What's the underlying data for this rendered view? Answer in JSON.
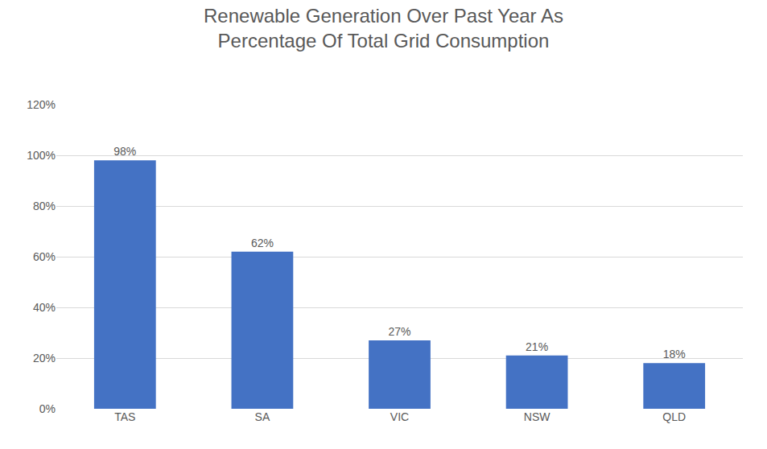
{
  "chart_data": {
    "type": "bar",
    "title": "Renewable Generation Over Past Year As\nPercentage Of Total Grid Consumption",
    "categories": [
      "TAS",
      "SA",
      "VIC",
      "NSW",
      "QLD"
    ],
    "values": [
      98,
      62,
      27,
      21,
      18
    ],
    "value_labels": [
      "98%",
      "62%",
      "27%",
      "21%",
      "18%"
    ],
    "data_labels": true,
    "color": "#4472C4",
    "ylim": [
      0,
      120
    ],
    "yticks": [
      {
        "value": 0,
        "label": "0%"
      },
      {
        "value": 20,
        "label": "20%"
      },
      {
        "value": 40,
        "label": "40%"
      },
      {
        "value": 60,
        "label": "60%"
      },
      {
        "value": 80,
        "label": "80%"
      },
      {
        "value": 100,
        "label": "100%"
      },
      {
        "value": 120,
        "label": "120%"
      }
    ],
    "grid": true
  }
}
